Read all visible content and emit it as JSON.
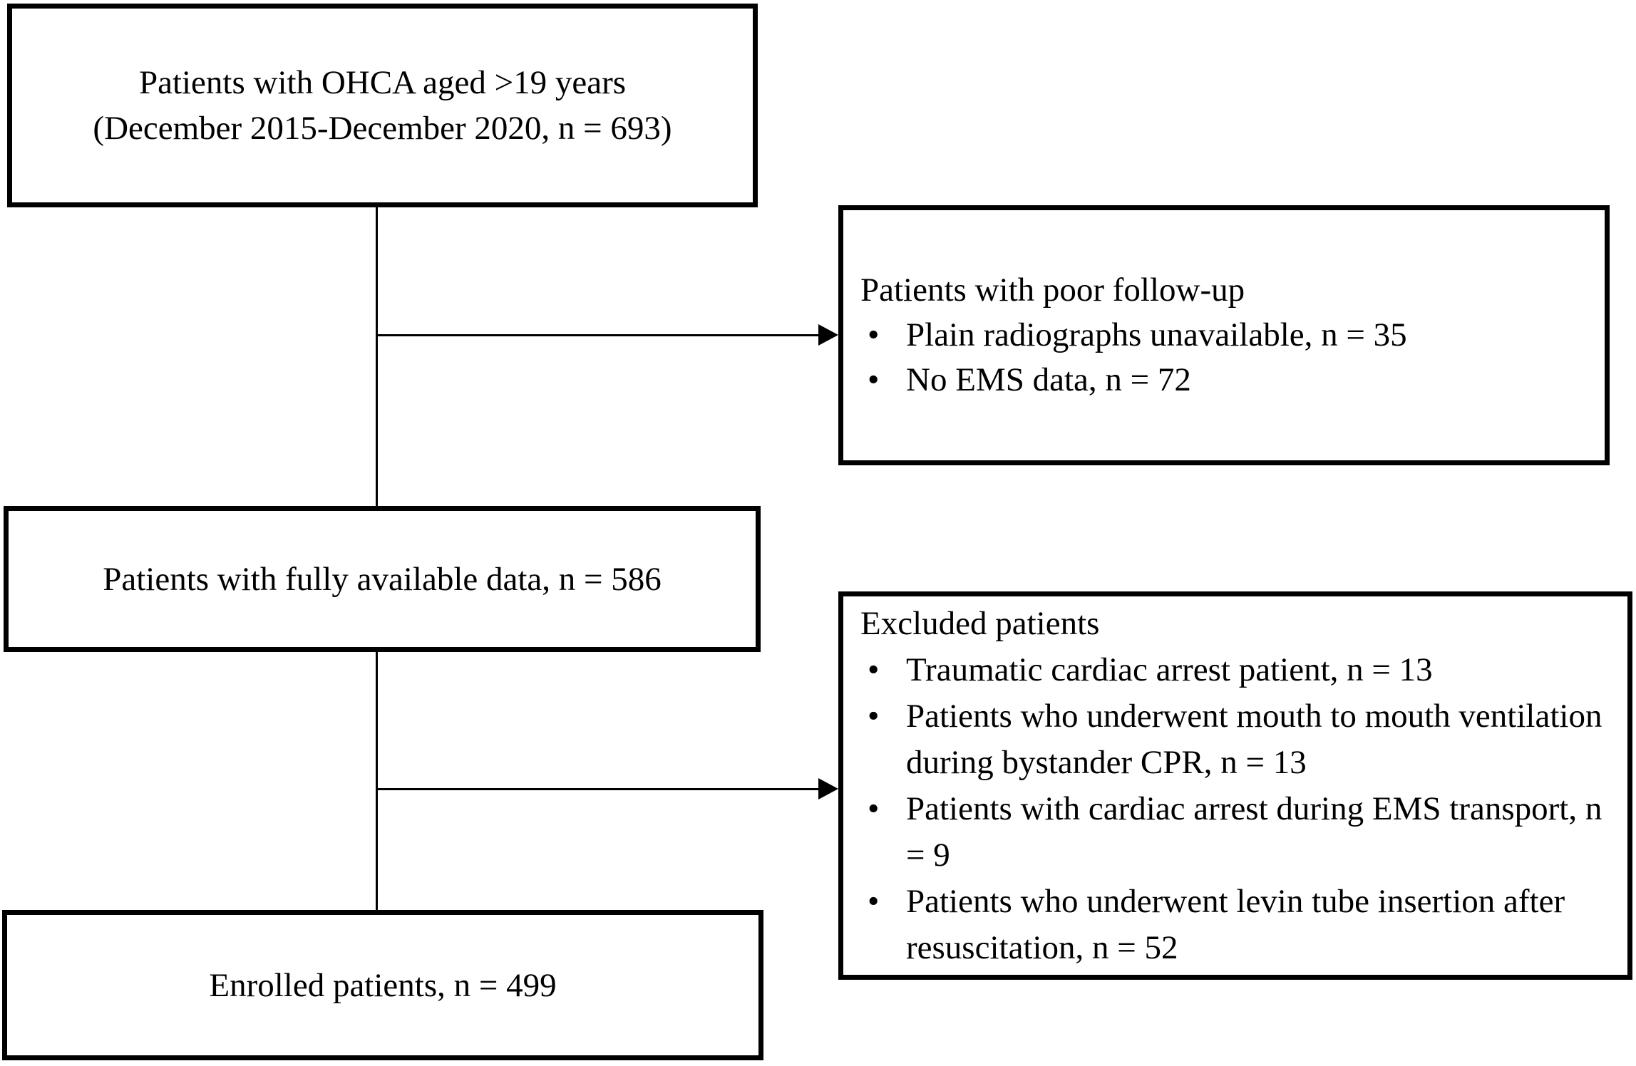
{
  "page": {
    "background_color": "#ffffff",
    "text_color": "#000000",
    "border_color": "#000000"
  },
  "boxes": {
    "ohca": {
      "line1": "Patients with OHCA aged >19 years",
      "line2": "(December 2015-December 2020, n = 693)"
    },
    "poor_followup": {
      "title": "Patients with poor follow-up",
      "bullets": [
        "Plain radiographs unavailable, n = 35",
        "No EMS data, n = 72"
      ]
    },
    "available_data": {
      "text": "Patients with fully available data, n = 586"
    },
    "excluded": {
      "title": "Excluded patients",
      "bullets": [
        "Traumatic cardiac arrest patient, n = 13",
        "Patients who underwent mouth to mouth ventilation during bystander CPR, n = 13",
        "Patients with cardiac arrest during EMS transport, n = 9",
        "Patients who underwent levin tube insertion after resuscitation, n = 52"
      ]
    },
    "enrolled": {
      "text": "Enrolled patients, n = 499"
    }
  }
}
